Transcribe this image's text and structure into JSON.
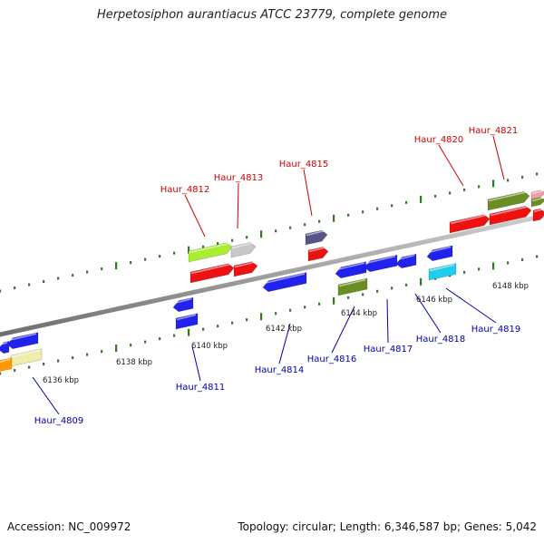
{
  "title": "Herpetosiphon aurantiacus ATCC 23779, complete genome",
  "footer": {
    "accession": "Accession: NC_009972",
    "info": "Topology: circular; Length: 6,346,587 bp; Genes: 5,042"
  },
  "colors": {
    "forward_label": "#cc0000",
    "reverse_label": "#0000aa",
    "tick": "#2e7d1e",
    "backbone": "#888888"
  },
  "tick_labels": [
    "6136 kbp",
    "6138 kbp",
    "6140 kbp",
    "6142 kbp",
    "6144 kbp",
    "6146 kbp",
    "6148 kbp"
  ],
  "forward_genes": [
    "Haur_4812",
    "Haur_4813",
    "Haur_4815",
    "Haur_4820",
    "Haur_4821"
  ],
  "reverse_genes": [
    "Haur_4809",
    "Haur_4811",
    "Haur_4814",
    "Haur_4816",
    "Haur_4817",
    "Haur_4818",
    "Haur_4819"
  ]
}
